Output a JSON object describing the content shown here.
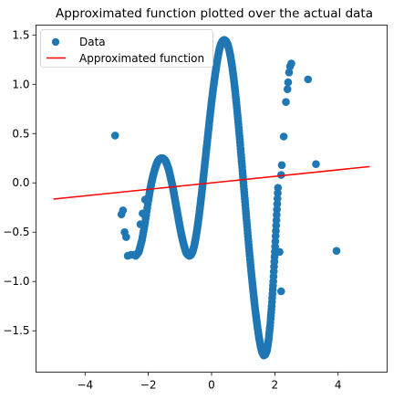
{
  "chart_data": {
    "type": "scatter",
    "title": "Approximated function plotted over the actual data",
    "xlabel": "",
    "ylabel": "",
    "xlim": [
      -5.55,
      5.55
    ],
    "ylim": [
      -1.92,
      1.6
    ],
    "x_ticks": [
      -4,
      -2,
      0,
      2,
      4
    ],
    "y_ticks": [
      -1.5,
      -1.0,
      -0.5,
      0.0,
      0.5,
      1.0,
      1.5
    ],
    "x_tick_labels": [
      "−4",
      "−2",
      "0",
      "2",
      "4"
    ],
    "y_tick_labels": [
      "−1.5",
      "−1.0",
      "−0.5",
      "0.0",
      "0.5",
      "1.0",
      "1.5"
    ],
    "legend_position": "top-left",
    "grid": false,
    "series": [
      {
        "name": "Data",
        "kind": "scatter",
        "color": "#1f77b4",
        "curve_samples": [
          [
            -2.4,
            -0.74
          ],
          [
            -2.3,
            -0.7
          ],
          [
            -2.2,
            -0.58
          ],
          [
            -2.1,
            -0.4
          ],
          [
            -2.0,
            -0.18
          ],
          [
            -1.95,
            -0.08
          ],
          [
            -1.9,
            0.0
          ],
          [
            -1.85,
            0.07
          ],
          [
            -1.8,
            0.13
          ],
          [
            -1.75,
            0.18
          ],
          [
            -1.7,
            0.22
          ],
          [
            -1.65,
            0.24
          ],
          [
            -1.6,
            0.25
          ],
          [
            -1.55,
            0.25
          ],
          [
            -1.5,
            0.24
          ],
          [
            -1.45,
            0.22
          ],
          [
            -1.4,
            0.18
          ],
          [
            -1.35,
            0.13
          ],
          [
            -1.3,
            0.06
          ],
          [
            -1.25,
            -0.01
          ],
          [
            -1.2,
            -0.09
          ],
          [
            -1.15,
            -0.18
          ],
          [
            -1.1,
            -0.27
          ],
          [
            -1.05,
            -0.36
          ],
          [
            -1.0,
            -0.45
          ],
          [
            -0.95,
            -0.53
          ],
          [
            -0.9,
            -0.6
          ],
          [
            -0.85,
            -0.66
          ],
          [
            -0.8,
            -0.71
          ],
          [
            -0.75,
            -0.73
          ],
          [
            -0.7,
            -0.74
          ],
          [
            -0.65,
            -0.73
          ],
          [
            -0.6,
            -0.7
          ],
          [
            -0.55,
            -0.64
          ],
          [
            -0.5,
            -0.56
          ],
          [
            -0.45,
            -0.46
          ],
          [
            -0.4,
            -0.34
          ],
          [
            -0.35,
            -0.21
          ],
          [
            -0.3,
            -0.07
          ],
          [
            -0.25,
            0.08
          ],
          [
            -0.2,
            0.23
          ],
          [
            -0.15,
            0.38
          ],
          [
            -0.1,
            0.53
          ],
          [
            -0.05,
            0.68
          ],
          [
            0.0,
            0.82
          ],
          [
            0.05,
            0.95
          ],
          [
            0.1,
            1.07
          ],
          [
            0.15,
            1.18
          ],
          [
            0.2,
            1.28
          ],
          [
            0.25,
            1.36
          ],
          [
            0.3,
            1.41
          ],
          [
            0.35,
            1.44
          ],
          [
            0.4,
            1.45
          ],
          [
            0.45,
            1.44
          ],
          [
            0.5,
            1.41
          ],
          [
            0.55,
            1.36
          ],
          [
            0.6,
            1.28
          ],
          [
            0.65,
            1.18
          ],
          [
            0.7,
            1.06
          ],
          [
            0.75,
            0.92
          ],
          [
            0.8,
            0.76
          ],
          [
            0.85,
            0.59
          ],
          [
            0.9,
            0.41
          ],
          [
            0.95,
            0.22
          ],
          [
            1.0,
            0.03
          ],
          [
            1.05,
            -0.16
          ],
          [
            1.1,
            -0.35
          ],
          [
            1.15,
            -0.54
          ],
          [
            1.2,
            -0.72
          ],
          [
            1.25,
            -0.89
          ],
          [
            1.3,
            -1.05
          ],
          [
            1.35,
            -1.2
          ],
          [
            1.4,
            -1.34
          ],
          [
            1.45,
            -1.46
          ],
          [
            1.5,
            -1.57
          ],
          [
            1.55,
            -1.66
          ],
          [
            1.6,
            -1.72
          ],
          [
            1.65,
            -1.75
          ],
          [
            1.7,
            -1.74
          ],
          [
            1.75,
            -1.7
          ],
          [
            1.8,
            -1.6
          ],
          [
            1.85,
            -1.45
          ],
          [
            1.9,
            -1.25
          ],
          [
            1.95,
            -1.0
          ],
          [
            2.0,
            -0.7
          ],
          [
            2.05,
            -0.38
          ],
          [
            2.1,
            -0.05
          ]
        ],
        "outliers": [
          [
            -3.05,
            0.48
          ],
          [
            -2.85,
            -0.32
          ],
          [
            -2.8,
            -0.28
          ],
          [
            -2.75,
            -0.5
          ],
          [
            -2.7,
            -0.55
          ],
          [
            -2.65,
            -0.74
          ],
          [
            -2.55,
            -0.73
          ],
          [
            -2.45,
            -0.73
          ],
          [
            -2.25,
            -0.42
          ],
          [
            -2.18,
            -0.31
          ],
          [
            -2.1,
            -0.17
          ],
          [
            2.2,
            0.08
          ],
          [
            2.22,
            0.18
          ],
          [
            2.28,
            0.47
          ],
          [
            2.35,
            0.82
          ],
          [
            2.4,
            0.95
          ],
          [
            2.42,
            1.02
          ],
          [
            2.45,
            1.12
          ],
          [
            2.48,
            1.18
          ],
          [
            2.52,
            1.21
          ],
          [
            3.05,
            1.05
          ],
          [
            3.3,
            0.19
          ],
          [
            3.95,
            -0.69
          ],
          [
            2.15,
            -0.7
          ],
          [
            2.2,
            -1.1
          ]
        ]
      },
      {
        "name": "Approximated function",
        "kind": "line",
        "color": "#ff0000",
        "x": [
          -5.0,
          5.0
        ],
        "y": [
          -0.165,
          0.165
        ]
      }
    ]
  }
}
